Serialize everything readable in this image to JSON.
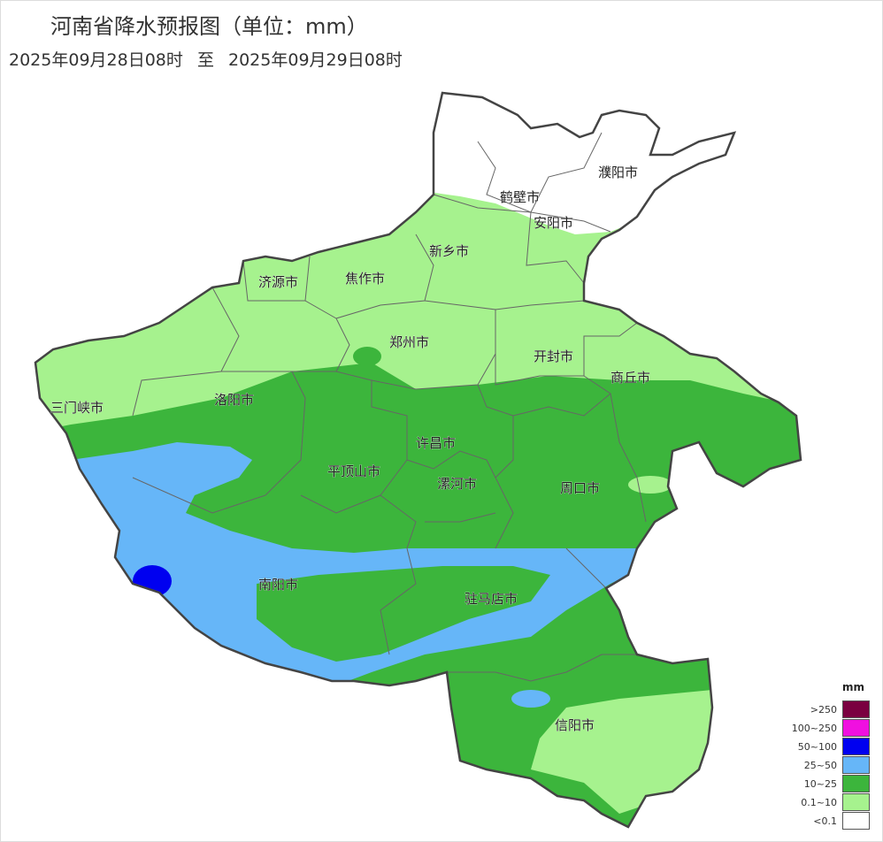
{
  "title": "河南省降水预报图（单位：mm）",
  "period": {
    "start": "2025年09月28日08时",
    "separator": "至",
    "end": "2025年09月29日08时"
  },
  "cities": [
    "濮阳市",
    "鹤壁市",
    "安阳市",
    "新乡市",
    "济源市",
    "焦作市",
    "郑州市",
    "开封市",
    "商丘市",
    "三门峡市",
    "洛阳市",
    "许昌市",
    "平顶山市",
    "漯河市",
    "周口市",
    "南阳市",
    "驻马店市",
    "信阳市"
  ],
  "legend": {
    "unit": "mm",
    "items": [
      {
        "label": ">250",
        "color": "#7a0040"
      },
      {
        "label": "100~250",
        "color": "#f010e0"
      },
      {
        "label": "50~100",
        "color": "#0000f0"
      },
      {
        "label": "25~50",
        "color": "#66b6f8"
      },
      {
        "label": "10~25",
        "color": "#3cb53c"
      },
      {
        "label": "0.1~10",
        "color": "#a6f28e"
      },
      {
        "label": "<0.1",
        "color": "#ffffff"
      }
    ]
  }
}
